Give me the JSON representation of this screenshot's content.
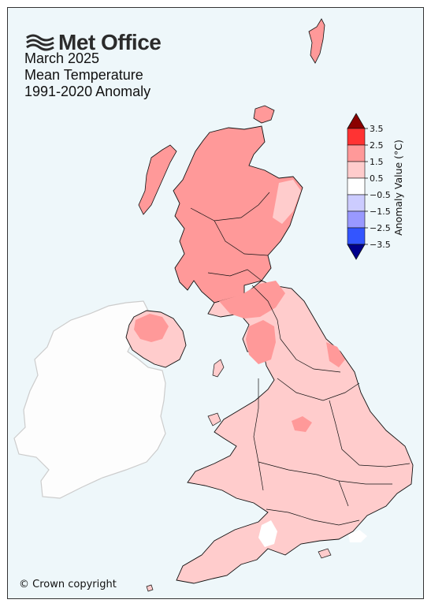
{
  "brand": {
    "name": "Met Office",
    "logo_icon": "met-office-waves-icon"
  },
  "title": {
    "line1": "March 2025",
    "line2": "Mean Temperature",
    "line3": "1991-2020 Anomaly"
  },
  "legend": {
    "label": "Anomaly Value (°C)",
    "ticks": [
      "3.5",
      "2.5",
      "1.5",
      "0.5",
      "−0.5",
      "−1.5",
      "−2.5",
      "−3.5"
    ],
    "colors": {
      "above_3_5": "#8b0000",
      "c_2_5_3_5": "#ff3333",
      "c_1_5_2_5": "#ff9999",
      "c_0_5_1_5": "#ffcccc",
      "c_m0_5_0_5": "#ffffff",
      "c_m1_5_m0_5": "#ccccff",
      "c_m2_5_m1_5": "#9999ff",
      "c_m3_5_m2_5": "#3355ff",
      "below_m3_5": "#00008b"
    }
  },
  "map_colors": {
    "sea": "#eef7fa",
    "ireland": "#fdfdfd",
    "ireland_border": "#cccccc",
    "uk_border": "#111111"
  },
  "footer": {
    "copyright": "© Crown copyright"
  }
}
